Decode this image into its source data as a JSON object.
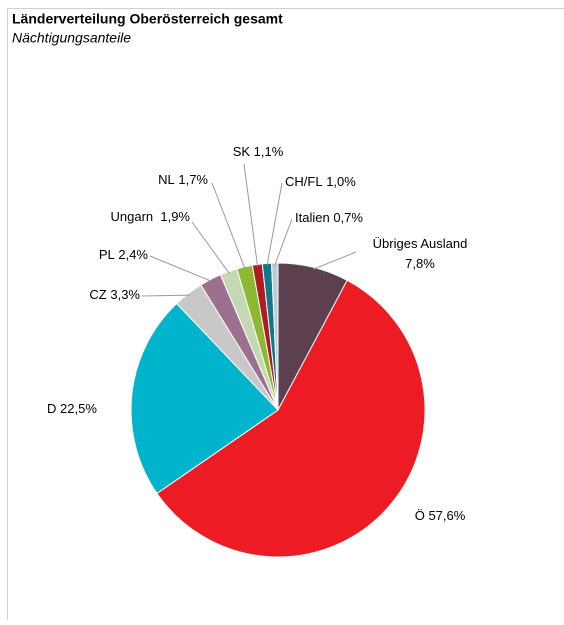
{
  "chart_data": {
    "type": "pie",
    "title": "Länderverteilung Oberösterreich gesamt",
    "subtitle": "Nächtigungsanteile",
    "categories": [
      "Übriges Ausland",
      "Ö",
      "D",
      "CZ",
      "PL",
      "Ungarn ",
      "NL",
      "SK",
      "CH/FL",
      "Italien"
    ],
    "values": [
      7.8,
      57.6,
      22.5,
      3.3,
      2.4,
      1.9,
      1.7,
      1.1,
      1.0,
      0.7
    ],
    "value_labels": [
      "7,8%",
      "57,6%",
      "22,5%",
      "3,3%",
      "2,4%",
      "1,9%",
      "1,7%",
      "1,1%",
      "1,0%",
      "0,7%"
    ],
    "colors": [
      "#5c4050",
      "#ed1c24",
      "#00b4cc",
      "#c8c8c8",
      "#9e7090",
      "#c4d8b4",
      "#8cb832",
      "#b01c24",
      "#107888",
      "#b8ccd8"
    ]
  }
}
